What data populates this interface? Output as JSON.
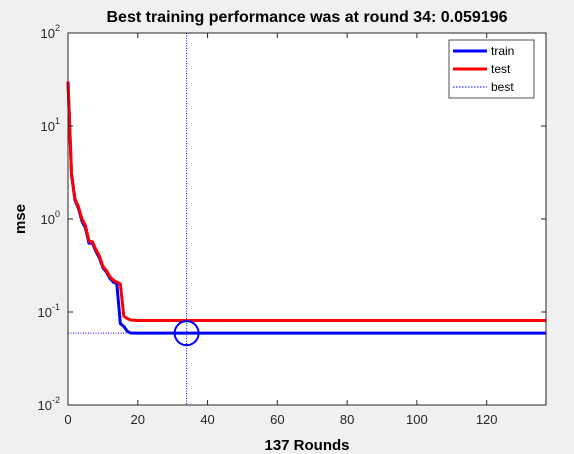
{
  "chart_data": {
    "type": "line",
    "title": "Best training performance was at round 34: 0.059196",
    "xlabel": "137 Rounds",
    "ylabel": "mse",
    "xlim": [
      0,
      137
    ],
    "ylim": [
      0.01,
      100
    ],
    "yscale": "log",
    "xticks": [
      0,
      20,
      40,
      60,
      80,
      100,
      120
    ],
    "yticks": [
      {
        "value": 0.01,
        "base": "10",
        "exp": "-2"
      },
      {
        "value": 0.1,
        "base": "10",
        "exp": "-1"
      },
      {
        "value": 1,
        "base": "10",
        "exp": "0"
      },
      {
        "value": 10,
        "base": "10",
        "exp": "1"
      },
      {
        "value": 100,
        "base": "10",
        "exp": "2"
      }
    ],
    "legend_position": "top-right",
    "grid": false,
    "series": [
      {
        "name": "train",
        "color": "#0000ff",
        "x": [
          0,
          1,
          2,
          3,
          4,
          5,
          6,
          7,
          8,
          9,
          10,
          11,
          12,
          13,
          14,
          15,
          16,
          17,
          18,
          20,
          25,
          30,
          34,
          40,
          60,
          80,
          100,
          120,
          137
        ],
        "y": [
          30,
          3.0,
          1.6,
          1.3,
          0.95,
          0.8,
          0.55,
          0.55,
          0.45,
          0.38,
          0.3,
          0.27,
          0.23,
          0.21,
          0.2,
          0.075,
          0.07,
          0.062,
          0.0594,
          0.05925,
          0.0592,
          0.0592,
          0.059196,
          0.0592,
          0.0592,
          0.0592,
          0.0592,
          0.0592,
          0.0592
        ]
      },
      {
        "name": "test",
        "color": "#ff0000",
        "x": [
          0,
          1,
          2,
          3,
          4,
          5,
          6,
          7,
          8,
          9,
          10,
          11,
          12,
          13,
          14,
          15,
          16,
          17,
          18,
          20,
          25,
          30,
          34,
          40,
          60,
          80,
          100,
          120,
          137
        ],
        "y": [
          30,
          3.1,
          1.65,
          1.35,
          1.0,
          0.85,
          0.58,
          0.57,
          0.47,
          0.4,
          0.31,
          0.28,
          0.24,
          0.22,
          0.21,
          0.2,
          0.09,
          0.085,
          0.082,
          0.081,
          0.081,
          0.081,
          0.081,
          0.081,
          0.081,
          0.081,
          0.081,
          0.081,
          0.081
        ]
      }
    ],
    "best": {
      "name": "best",
      "round": 34,
      "value": 0.059196,
      "color": "#0000ff",
      "guide_color": "#0000ff"
    }
  }
}
